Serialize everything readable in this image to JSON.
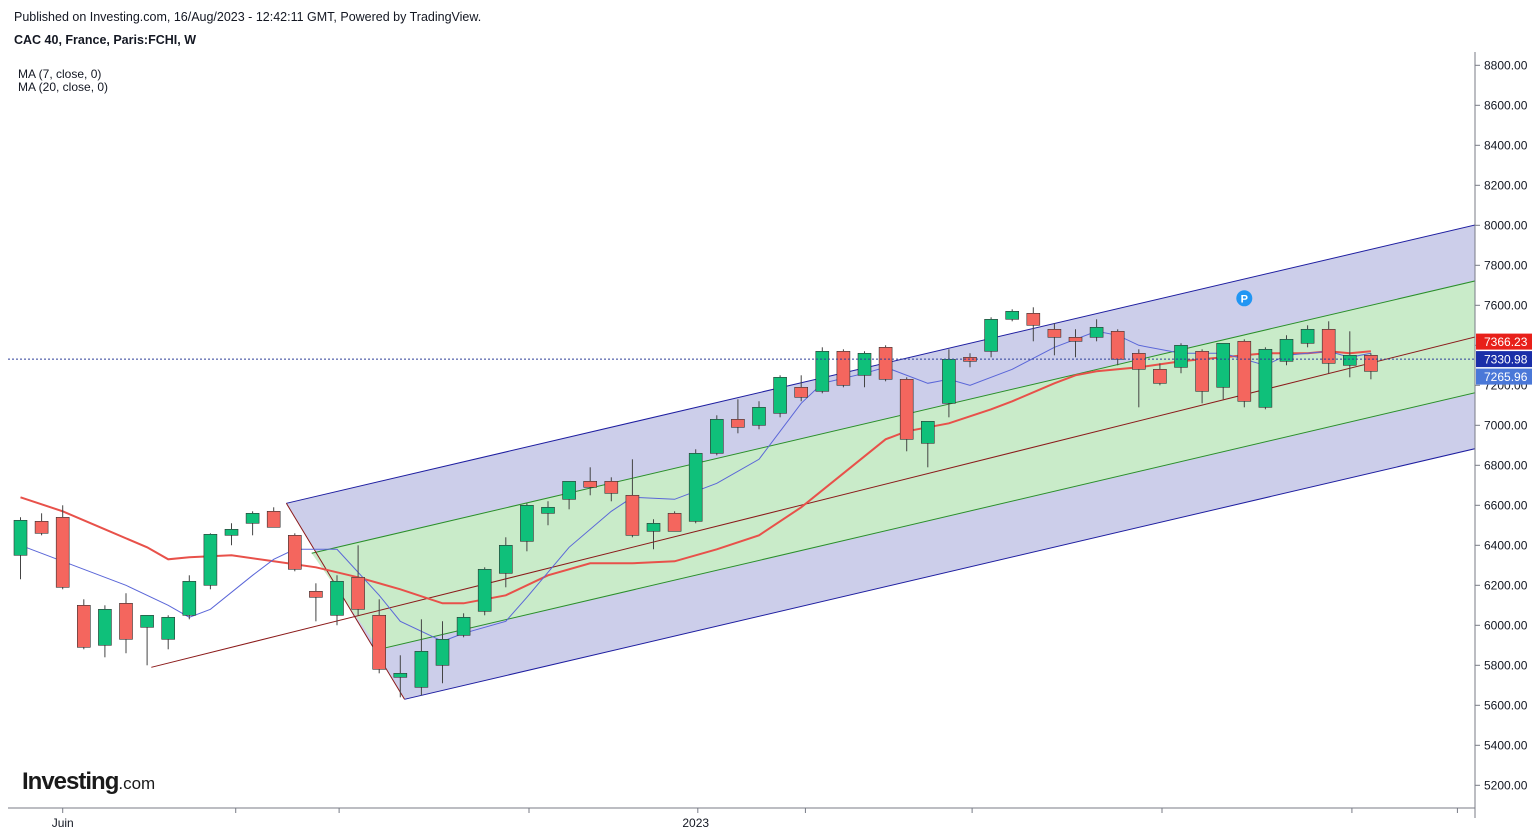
{
  "header": {
    "published": "Published on Investing.com, 16/Aug/2023 - 12:42:11 GMT, Powered by TradingView.",
    "symbol": "CAC 40, France, Paris:FCHI, W"
  },
  "indicators": {
    "ma1": "MA (7, close, 0)",
    "ma2": "MA (20, close, 0)"
  },
  "logo": {
    "main": "Investing",
    "suffix": ".com"
  },
  "colors": {
    "up": "#0fc07a",
    "down": "#f4665e",
    "outer_band": "#c9cbe9",
    "inner_band": "#c9ebc9",
    "ma7": "#5a66d8",
    "ma20": "#e8514a",
    "pitchfork_outer": "#1e1ea0",
    "pitchfork_inner": "#2a8f2a",
    "median": "#8b1a1a",
    "last_price": "#2c3e99"
  },
  "chart_data": {
    "type": "candlestick",
    "title": "CAC 40, France, Paris:FCHI, W",
    "ylim": [
      5100,
      8850
    ],
    "y_ticks": [
      8800,
      8600,
      8400,
      8200,
      8000,
      7800,
      7600,
      7400,
      7200,
      7000,
      6800,
      6600,
      6400,
      6200,
      6000,
      5800,
      5600,
      5400,
      5200
    ],
    "y_tick_labels": [
      "8800.00",
      "8600.00",
      "8400.00",
      "8200.00",
      "8000.00",
      "7800.00",
      "7600.00",
      "7400.00",
      "7200.00",
      "7000.00",
      "6800.00",
      "6600.00",
      "6400.00",
      "6200.00",
      "6000.00",
      "5800.00",
      "5600.00",
      "5400.00",
      "5200.00"
    ],
    "x_labels": [
      {
        "label": "Juin",
        "bar": 2
      },
      {
        "label": "2023",
        "bar": 32
      }
    ],
    "price_labels": [
      {
        "value": 7366.23,
        "text": "7366.23",
        "color": "#e8201a"
      },
      {
        "value": 7330.98,
        "text": "7330.98",
        "color": "#1a2ea8"
      },
      {
        "value": 7265.96,
        "text": "7265.96",
        "color": "#4a78d8"
      }
    ],
    "last_price": 7330.98,
    "marker": {
      "bar": 58,
      "value": 7635,
      "text": "P"
    },
    "candles": [
      {
        "o": 6350,
        "h": 6540,
        "l": 6230,
        "c": 6525
      },
      {
        "o": 6520,
        "h": 6560,
        "l": 6450,
        "c": 6460
      },
      {
        "o": 6540,
        "h": 6600,
        "l": 6180,
        "c": 6190
      },
      {
        "o": 6100,
        "h": 6130,
        "l": 5880,
        "c": 5890
      },
      {
        "o": 5900,
        "h": 6100,
        "l": 5840,
        "c": 6080
      },
      {
        "o": 6110,
        "h": 6160,
        "l": 5860,
        "c": 5930
      },
      {
        "o": 5990,
        "h": 6050,
        "l": 5800,
        "c": 6050
      },
      {
        "o": 5930,
        "h": 6050,
        "l": 5880,
        "c": 6040
      },
      {
        "o": 6050,
        "h": 6250,
        "l": 6030,
        "c": 6220
      },
      {
        "o": 6200,
        "h": 6460,
        "l": 6180,
        "c": 6455
      },
      {
        "o": 6450,
        "h": 6510,
        "l": 6400,
        "c": 6480
      },
      {
        "o": 6510,
        "h": 6570,
        "l": 6450,
        "c": 6560
      },
      {
        "o": 6570,
        "h": 6590,
        "l": 6490,
        "c": 6490
      },
      {
        "o": 6450,
        "h": 6460,
        "l": 6270,
        "c": 6280
      },
      {
        "o": 6170,
        "h": 6210,
        "l": 6020,
        "c": 6140
      },
      {
        "o": 6050,
        "h": 6250,
        "l": 6000,
        "c": 6220
      },
      {
        "o": 6240,
        "h": 6400,
        "l": 6050,
        "c": 6080
      },
      {
        "o": 6050,
        "h": 6130,
        "l": 5760,
        "c": 5780
      },
      {
        "o": 5740,
        "h": 5850,
        "l": 5640,
        "c": 5760
      },
      {
        "o": 5690,
        "h": 6030,
        "l": 5650,
        "c": 5870
      },
      {
        "o": 5800,
        "h": 6020,
        "l": 5710,
        "c": 5930
      },
      {
        "o": 5950,
        "h": 6060,
        "l": 5940,
        "c": 6040
      },
      {
        "o": 6070,
        "h": 6290,
        "l": 6050,
        "c": 6280
      },
      {
        "o": 6260,
        "h": 6440,
        "l": 6190,
        "c": 6400
      },
      {
        "o": 6420,
        "h": 6610,
        "l": 6370,
        "c": 6600
      },
      {
        "o": 6560,
        "h": 6620,
        "l": 6500,
        "c": 6590
      },
      {
        "o": 6630,
        "h": 6720,
        "l": 6580,
        "c": 6720
      },
      {
        "o": 6720,
        "h": 6790,
        "l": 6650,
        "c": 6690
      },
      {
        "o": 6720,
        "h": 6740,
        "l": 6620,
        "c": 6660
      },
      {
        "o": 6650,
        "h": 6830,
        "l": 6440,
        "c": 6450
      },
      {
        "o": 6470,
        "h": 6530,
        "l": 6380,
        "c": 6510
      },
      {
        "o": 6560,
        "h": 6570,
        "l": 6470,
        "c": 6470
      },
      {
        "o": 6520,
        "h": 6880,
        "l": 6510,
        "c": 6860
      },
      {
        "o": 6860,
        "h": 7050,
        "l": 6850,
        "c": 7030
      },
      {
        "o": 7030,
        "h": 7130,
        "l": 6960,
        "c": 6990
      },
      {
        "o": 7000,
        "h": 7120,
        "l": 6980,
        "c": 7090
      },
      {
        "o": 7060,
        "h": 7250,
        "l": 7040,
        "c": 7240
      },
      {
        "o": 7190,
        "h": 7250,
        "l": 7120,
        "c": 7140
      },
      {
        "o": 7170,
        "h": 7390,
        "l": 7160,
        "c": 7370
      },
      {
        "o": 7370,
        "h": 7380,
        "l": 7190,
        "c": 7200
      },
      {
        "o": 7250,
        "h": 7370,
        "l": 7190,
        "c": 7360
      },
      {
        "o": 7390,
        "h": 7400,
        "l": 7220,
        "c": 7230
      },
      {
        "o": 7230,
        "h": 7240,
        "l": 6870,
        "c": 6930
      },
      {
        "o": 6910,
        "h": 7020,
        "l": 6790,
        "c": 7020
      },
      {
        "o": 7110,
        "h": 7380,
        "l": 7040,
        "c": 7330
      },
      {
        "o": 7340,
        "h": 7360,
        "l": 7290,
        "c": 7320
      },
      {
        "o": 7370,
        "h": 7540,
        "l": 7340,
        "c": 7530
      },
      {
        "o": 7530,
        "h": 7580,
        "l": 7520,
        "c": 7570
      },
      {
        "o": 7560,
        "h": 7590,
        "l": 7420,
        "c": 7500
      },
      {
        "o": 7480,
        "h": 7510,
        "l": 7350,
        "c": 7440
      },
      {
        "o": 7440,
        "h": 7480,
        "l": 7340,
        "c": 7420
      },
      {
        "o": 7440,
        "h": 7530,
        "l": 7420,
        "c": 7490
      },
      {
        "o": 7470,
        "h": 7480,
        "l": 7300,
        "c": 7330
      },
      {
        "o": 7360,
        "h": 7380,
        "l": 7090,
        "c": 7280
      },
      {
        "o": 7280,
        "h": 7310,
        "l": 7200,
        "c": 7210
      },
      {
        "o": 7290,
        "h": 7410,
        "l": 7260,
        "c": 7400
      },
      {
        "o": 7370,
        "h": 7380,
        "l": 7110,
        "c": 7170
      },
      {
        "o": 7190,
        "h": 7400,
        "l": 7130,
        "c": 7410
      },
      {
        "o": 7420,
        "h": 7430,
        "l": 7090,
        "c": 7120
      },
      {
        "o": 7090,
        "h": 7390,
        "l": 7080,
        "c": 7380
      },
      {
        "o": 7320,
        "h": 7450,
        "l": 7300,
        "c": 7430
      },
      {
        "o": 7410,
        "h": 7500,
        "l": 7390,
        "c": 7480
      },
      {
        "o": 7480,
        "h": 7520,
        "l": 7260,
        "c": 7310
      },
      {
        "o": 7300,
        "h": 7470,
        "l": 7240,
        "c": 7350
      },
      {
        "o": 7350,
        "h": 7360,
        "l": 7230,
        "c": 7270
      }
    ],
    "ma7": [
      [
        0,
        6400
      ],
      [
        3,
        6280
      ],
      [
        5,
        6200
      ],
      [
        7,
        6100
      ],
      [
        8,
        6040
      ],
      [
        9,
        6080
      ],
      [
        11,
        6250
      ],
      [
        12,
        6330
      ],
      [
        13,
        6380
      ],
      [
        15,
        6380
      ],
      [
        17,
        6150
      ],
      [
        18,
        6020
      ],
      [
        20,
        5920
      ],
      [
        21,
        5960
      ],
      [
        23,
        6020
      ],
      [
        24,
        6140
      ],
      [
        26,
        6390
      ],
      [
        28,
        6570
      ],
      [
        29,
        6640
      ],
      [
        31,
        6630
      ],
      [
        33,
        6710
      ],
      [
        35,
        6830
      ],
      [
        37,
        7110
      ],
      [
        38,
        7210
      ],
      [
        40,
        7260
      ],
      [
        41,
        7290
      ],
      [
        43,
        7210
      ],
      [
        44,
        7230
      ],
      [
        45,
        7200
      ],
      [
        47,
        7280
      ],
      [
        49,
        7390
      ],
      [
        51,
        7470
      ],
      [
        52,
        7450
      ],
      [
        53,
        7400
      ],
      [
        55,
        7360
      ],
      [
        57,
        7360
      ],
      [
        59,
        7300
      ],
      [
        60,
        7350
      ],
      [
        62,
        7370
      ],
      [
        63,
        7340
      ],
      [
        64,
        7360
      ]
    ],
    "ma20": [
      [
        0,
        6640
      ],
      [
        2,
        6570
      ],
      [
        4,
        6480
      ],
      [
        6,
        6390
      ],
      [
        7,
        6330
      ],
      [
        8,
        6340
      ],
      [
        10,
        6350
      ],
      [
        12,
        6320
      ],
      [
        14,
        6290
      ],
      [
        16,
        6240
      ],
      [
        18,
        6180
      ],
      [
        20,
        6110
      ],
      [
        21,
        6110
      ],
      [
        23,
        6150
      ],
      [
        25,
        6250
      ],
      [
        27,
        6310
      ],
      [
        29,
        6310
      ],
      [
        31,
        6320
      ],
      [
        33,
        6380
      ],
      [
        35,
        6450
      ],
      [
        37,
        6590
      ],
      [
        39,
        6760
      ],
      [
        41,
        6930
      ],
      [
        42,
        6970
      ],
      [
        44,
        7010
      ],
      [
        46,
        7080
      ],
      [
        47,
        7120
      ],
      [
        49,
        7210
      ],
      [
        50,
        7250
      ],
      [
        51,
        7270
      ],
      [
        53,
        7290
      ],
      [
        55,
        7320
      ],
      [
        57,
        7340
      ],
      [
        59,
        7360
      ],
      [
        61,
        7360
      ],
      [
        62,
        7370
      ],
      [
        63,
        7360
      ],
      [
        64,
        7370
      ]
    ],
    "pitchfork": {
      "pivot_a": {
        "bar": 6.2,
        "value": 5790
      },
      "pivot_b": {
        "bar": 12.6,
        "value": 6610
      },
      "pivot_c": {
        "bar": 18.2,
        "value": 5630
      },
      "end_bar": 69.5,
      "slope_per_bar": 24.7,
      "median_offset": 0,
      "inner_offset": 300
    }
  }
}
